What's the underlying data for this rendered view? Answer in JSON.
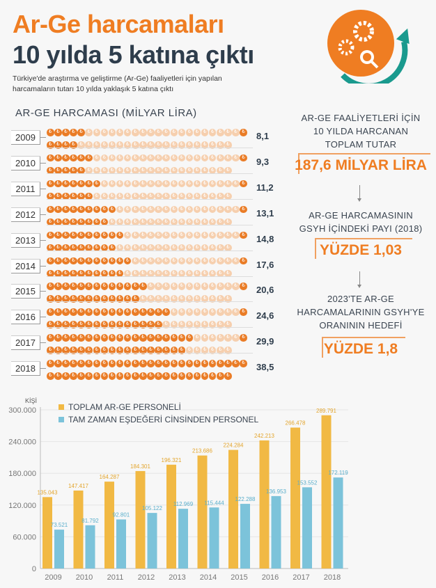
{
  "header": {
    "title_line1": "Ar-Ge harcamaları",
    "title_line2": "10 yılda 5 katına çıktı",
    "subtitle": "Türkiye'de araştırma ve geliştirme (Ar-Ge) faaliyetleri için yapılan harcamaların tutarı 10 yılda yaklaşık 5 katına çıktı",
    "logo_icon": "gears-magnifier-up-arrow-icon"
  },
  "colors": {
    "orange": "#ef7d22",
    "coin_on": "#ea7c26",
    "coin_off": "#f6cfae",
    "bar_total": "#f1b944",
    "bar_fte": "#7cc3da",
    "dark": "#2e3d4c"
  },
  "spending": {
    "title": "AR-GE HARCAMASI (MİLYAR LİRA)",
    "coin_symbol": "₺",
    "rows": [
      {
        "year": "2009",
        "value": "8,1",
        "num": 8.1
      },
      {
        "year": "2010",
        "value": "9,3",
        "num": 9.3
      },
      {
        "year": "2011",
        "value": "11,2",
        "num": 11.2
      },
      {
        "year": "2012",
        "value": "13,1",
        "num": 13.1
      },
      {
        "year": "2013",
        "value": "14,8",
        "num": 14.8
      },
      {
        "year": "2014",
        "value": "17,6",
        "num": 17.6
      },
      {
        "year": "2015",
        "value": "20,6",
        "num": 20.6
      },
      {
        "year": "2016",
        "value": "24,6",
        "num": 24.6
      },
      {
        "year": "2017",
        "value": "29,9",
        "num": 29.9
      },
      {
        "year": "2018",
        "value": "38,5",
        "num": 38.5
      }
    ]
  },
  "facts": [
    {
      "label": "AR-GE FAALİYETLERİ İÇİN\n10 YILDA HARCANAN\nTOPLAM TUTAR",
      "value": "187,6 MİLYAR LİRA"
    },
    {
      "label": "AR-GE HARCAMASININ\nGSYH İÇİNDEKİ PAYI (2018)",
      "value": "YÜZDE 1,03"
    },
    {
      "label": "2023'TE AR-GE\nHARCAMALARININ GSYH'YE\nORANININ HEDEFİ",
      "value": "YÜZDE 1,8"
    }
  ],
  "chart_data": {
    "type": "bar",
    "ylabel": "KİŞİ",
    "categories": [
      "2009",
      "2010",
      "2011",
      "2012",
      "2013",
      "2014",
      "2015",
      "2016",
      "2017",
      "2018"
    ],
    "ylim": [
      0,
      300000
    ],
    "yticks": [
      0,
      60000,
      120000,
      180000,
      240000,
      300000
    ],
    "ytick_labels": [
      "0",
      "60.000",
      "120.000",
      "180.000",
      "240.000",
      "300.000"
    ],
    "grid": true,
    "legend": "top-left",
    "series": [
      {
        "name": "TOPLAM AR-GE PERSONELİ",
        "color": "#f1b944",
        "values": [
          135043,
          147417,
          164287,
          184301,
          196321,
          213686,
          224284,
          242213,
          266478,
          289791
        ],
        "labels": [
          "135.043",
          "147.417",
          "164.287",
          "184.301",
          "196.321",
          "213.686",
          "224.284",
          "242.213",
          "266.478",
          "289.791"
        ]
      },
      {
        "name": "TAM ZAMAN EŞDEĞERİ CİNSİNDEN PERSONEL",
        "color": "#7cc3da",
        "values": [
          73521,
          81792,
          92801,
          105122,
          112969,
          115444,
          122288,
          136953,
          153552,
          172119
        ],
        "labels": [
          "73.521",
          "81.792",
          "92.801",
          "105.122",
          "112.969",
          "115.444",
          "122.288",
          "136.953",
          "153.552",
          "172.119"
        ]
      }
    ]
  }
}
